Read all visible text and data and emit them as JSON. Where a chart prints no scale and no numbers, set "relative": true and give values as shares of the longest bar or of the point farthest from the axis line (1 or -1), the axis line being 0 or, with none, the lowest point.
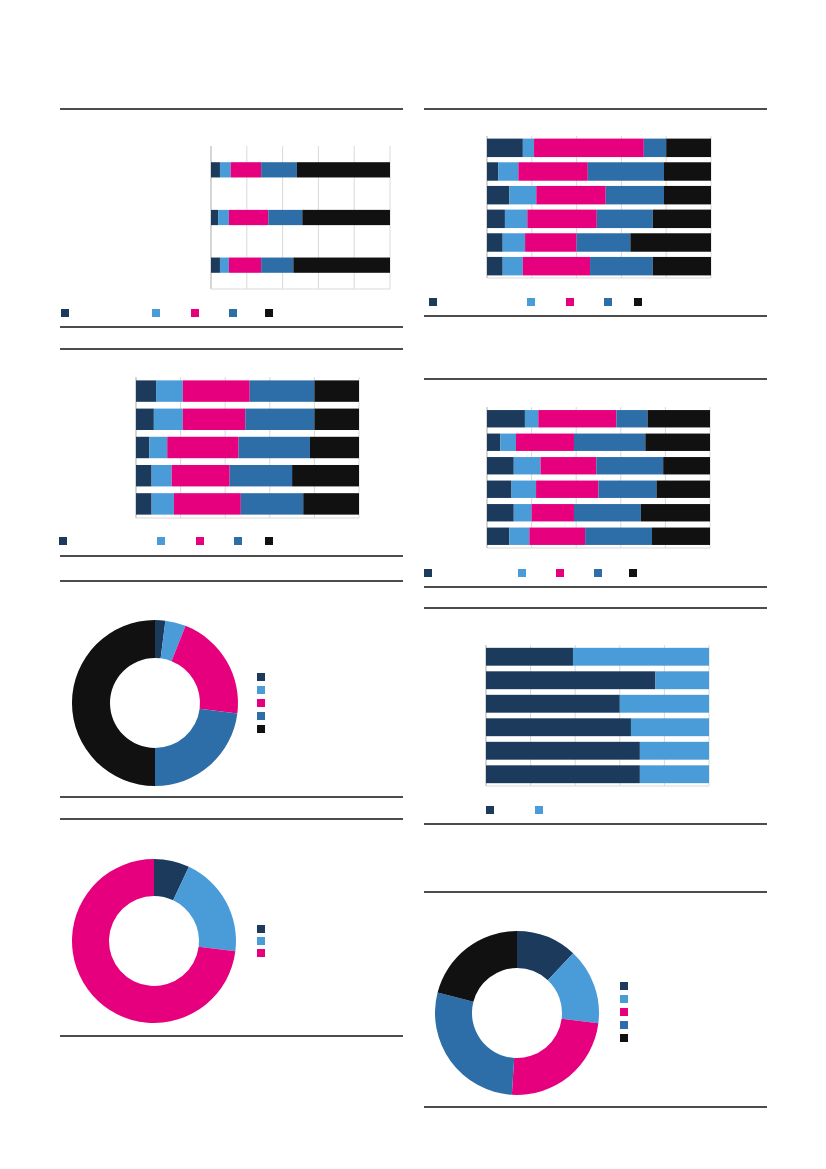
{
  "chart_data": [
    {
      "type": "bar",
      "orientation": "horizontal",
      "stacked": true,
      "relative": true,
      "grid": true,
      "categories": [
        null,
        null,
        null
      ],
      "series": [
        {
          "color": "#1b3a5c",
          "values": [
            0.05,
            0.04,
            0.05
          ]
        },
        {
          "color": "#4a9cd9",
          "values": [
            0.06,
            0.06,
            0.05
          ]
        },
        {
          "color": "#e6007e",
          "values": [
            0.17,
            0.22,
            0.18
          ]
        },
        {
          "color": "#2e6ea8",
          "values": [
            0.2,
            0.19,
            0.18
          ]
        },
        {
          "color": "#111111",
          "values": [
            0.52,
            0.49,
            0.54
          ]
        }
      ]
    },
    {
      "type": "bar",
      "orientation": "horizontal",
      "stacked": true,
      "relative": true,
      "grid": true,
      "categories": [
        null,
        null,
        null,
        null,
        null,
        null
      ],
      "series": [
        {
          "color": "#1b3a5c",
          "values": [
            0.16,
            0.05,
            0.1,
            0.08,
            0.07,
            0.07
          ]
        },
        {
          "color": "#4a9cd9",
          "values": [
            0.05,
            0.09,
            0.12,
            0.1,
            0.1,
            0.09
          ]
        },
        {
          "color": "#e6007e",
          "values": [
            0.49,
            0.31,
            0.31,
            0.31,
            0.23,
            0.3
          ]
        },
        {
          "color": "#2e6ea8",
          "values": [
            0.1,
            0.34,
            0.26,
            0.25,
            0.24,
            0.28
          ]
        },
        {
          "color": "#111111",
          "values": [
            0.2,
            0.21,
            0.21,
            0.26,
            0.36,
            0.26
          ]
        }
      ]
    },
    {
      "type": "bar",
      "orientation": "horizontal",
      "stacked": true,
      "relative": true,
      "grid": true,
      "categories": [
        null,
        null,
        null,
        null,
        null
      ],
      "series": [
        {
          "color": "#1b3a5c",
          "values": [
            0.09,
            0.08,
            0.06,
            0.07,
            0.07
          ]
        },
        {
          "color": "#4a9cd9",
          "values": [
            0.12,
            0.13,
            0.08,
            0.09,
            0.1
          ]
        },
        {
          "color": "#e6007e",
          "values": [
            0.3,
            0.28,
            0.32,
            0.26,
            0.3
          ]
        },
        {
          "color": "#2e6ea8",
          "values": [
            0.29,
            0.31,
            0.32,
            0.28,
            0.28
          ]
        },
        {
          "color": "#111111",
          "values": [
            0.2,
            0.2,
            0.22,
            0.3,
            0.25
          ]
        }
      ]
    },
    {
      "type": "bar",
      "orientation": "horizontal",
      "stacked": true,
      "relative": true,
      "grid": true,
      "categories": [
        null,
        null,
        null,
        null,
        null,
        null
      ],
      "series": [
        {
          "color": "#1b3a5c",
          "values": [
            0.17,
            0.06,
            0.12,
            0.11,
            0.12,
            0.1
          ]
        },
        {
          "color": "#4a9cd9",
          "values": [
            0.06,
            0.07,
            0.12,
            0.11,
            0.08,
            0.09
          ]
        },
        {
          "color": "#e6007e",
          "values": [
            0.35,
            0.26,
            0.25,
            0.28,
            0.19,
            0.25
          ]
        },
        {
          "color": "#2e6ea8",
          "values": [
            0.14,
            0.32,
            0.3,
            0.26,
            0.3,
            0.3
          ]
        },
        {
          "color": "#111111",
          "values": [
            0.28,
            0.29,
            0.21,
            0.24,
            0.31,
            0.26
          ]
        }
      ]
    },
    {
      "type": "donut",
      "categories": [
        null,
        null,
        null,
        null,
        null
      ],
      "values": [
        2,
        4,
        21,
        23,
        50
      ],
      "colors": [
        "#1b3a5c",
        "#4a9cd9",
        "#e6007e",
        "#2e6ea8",
        "#111111"
      ]
    },
    {
      "type": "bar",
      "orientation": "horizontal",
      "stacked": true,
      "relative": true,
      "grid": true,
      "categories": [
        null,
        null,
        null,
        null,
        null,
        null
      ],
      "series": [
        {
          "color": "#1b3a5c",
          "values": [
            0.39,
            0.76,
            0.6,
            0.65,
            0.69,
            0.69
          ]
        },
        {
          "color": "#4a9cd9",
          "values": [
            0.61,
            0.24,
            0.4,
            0.35,
            0.31,
            0.31
          ]
        }
      ]
    },
    {
      "type": "donut",
      "categories": [
        null,
        null,
        null
      ],
      "values": [
        7,
        20,
        73
      ],
      "colors": [
        "#1b3a5c",
        "#4a9cd9",
        "#e6007e"
      ]
    },
    {
      "type": "donut",
      "categories": [
        null,
        null,
        null,
        null,
        null
      ],
      "values": [
        12,
        15,
        24,
        28,
        21
      ],
      "colors": [
        "#1b3a5c",
        "#4a9cd9",
        "#e6007e",
        "#2e6ea8",
        "#111111"
      ]
    }
  ]
}
